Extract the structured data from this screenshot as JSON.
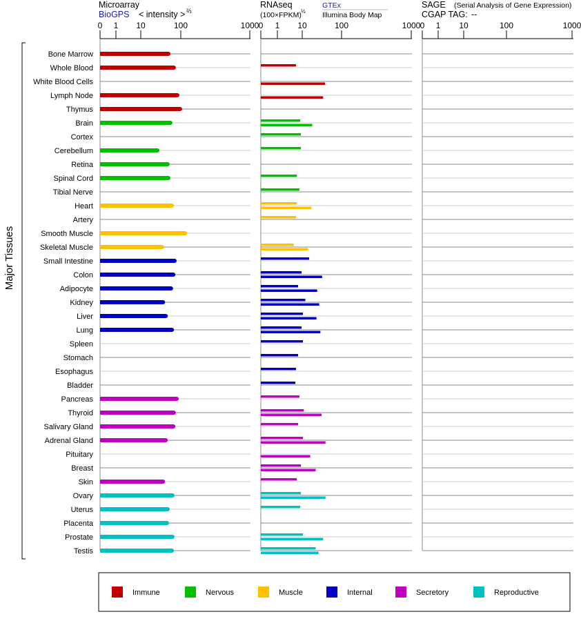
{
  "chart_data": {
    "type": "bar",
    "ylabel": "Major Tissues",
    "axis_ticks": [
      "0",
      "1",
      "10",
      "100",
      "1000"
    ],
    "xlim": [
      0,
      1000
    ],
    "panels": {
      "microarray": {
        "title": "Microarray",
        "source": "BioGPS",
        "unit": "< intensity >",
        "exponent": "⅔"
      },
      "rnaseq": {
        "title": "RNAseq",
        "unit": "(100×FPKM)",
        "exponent": "½",
        "series_top": "GTEx",
        "series_bottom": "Illumina Body Map"
      },
      "sage": {
        "title": "SAGE",
        "subtitle": "(Serial Analysis of Gene Expression)",
        "tag_label": "CGAP  TAG:",
        "tag_value": "--"
      }
    },
    "groups": [
      {
        "name": "Immune",
        "color": "#c00000"
      },
      {
        "name": "Nervous",
        "color": "#00c000"
      },
      {
        "name": "Muscle",
        "color": "#ffc000"
      },
      {
        "name": "Internal",
        "color": "#0000c0"
      },
      {
        "name": "Secretory",
        "color": "#c000c0"
      },
      {
        "name": "Reproductive",
        "color": "#00c0c0"
      }
    ],
    "rows": [
      {
        "tissue": "Bone Marrow",
        "group": 0,
        "microarray": 49,
        "gtex": null,
        "illumina": null
      },
      {
        "tissue": "Whole Blood",
        "group": 0,
        "microarray": 67,
        "gtex": 5.6,
        "illumina": null
      },
      {
        "tissue": "White Blood Cells",
        "group": 0,
        "microarray": null,
        "gtex": null,
        "illumina": 38
      },
      {
        "tissue": "Lymph Node",
        "group": 0,
        "microarray": 82,
        "gtex": null,
        "illumina": 34
      },
      {
        "tissue": "Thymus",
        "group": 0,
        "microarray": 96,
        "gtex": null,
        "illumina": null
      },
      {
        "tissue": "Brain",
        "group": 1,
        "microarray": 55,
        "gtex": 8.3,
        "illumina": 18
      },
      {
        "tissue": "Cortex",
        "group": 1,
        "microarray": null,
        "gtex": 8.8,
        "illumina": null
      },
      {
        "tissue": "Cerebellum",
        "group": 1,
        "microarray": 26,
        "gtex": 8.8,
        "illumina": null
      },
      {
        "tissue": "Retina",
        "group": 1,
        "microarray": 47,
        "gtex": null,
        "illumina": null
      },
      {
        "tissue": "Spinal Cord",
        "group": 1,
        "microarray": 49,
        "gtex": 6.0,
        "illumina": null
      },
      {
        "tissue": "Tibial Nerve",
        "group": 1,
        "microarray": null,
        "gtex": 7.7,
        "illumina": null
      },
      {
        "tissue": "Heart",
        "group": 2,
        "microarray": 60,
        "gtex": 6.0,
        "illumina": 17
      },
      {
        "tissue": "Artery",
        "group": 2,
        "microarray": null,
        "gtex": 5.6,
        "illumina": null
      },
      {
        "tissue": "Smooth Muscle",
        "group": 2,
        "microarray": 115,
        "gtex": null,
        "illumina": null
      },
      {
        "tissue": "Skeletal Muscle",
        "group": 2,
        "microarray": 34,
        "gtex": 4.6,
        "illumina": 14
      },
      {
        "tissue": "Small Intestine",
        "group": 3,
        "microarray": 70,
        "gtex": 15,
        "illumina": null
      },
      {
        "tissue": "Colon",
        "group": 3,
        "microarray": 65,
        "gtex": 9.4,
        "illumina": 32
      },
      {
        "tissue": "Adipocyte",
        "group": 3,
        "microarray": 57,
        "gtex": 6.8,
        "illumina": 24
      },
      {
        "tissue": "Kidney",
        "group": 3,
        "microarray": 36,
        "gtex": 12,
        "illumina": 27
      },
      {
        "tissue": "Liver",
        "group": 3,
        "microarray": 42,
        "gtex": 10.4,
        "illumina": 23
      },
      {
        "tissue": "Lung",
        "group": 3,
        "microarray": 60,
        "gtex": 9.4,
        "illumina": 29
      },
      {
        "tissue": "Spleen",
        "group": 3,
        "microarray": null,
        "gtex": 10.4,
        "illumina": null
      },
      {
        "tissue": "Stomach",
        "group": 3,
        "microarray": null,
        "gtex": 6.8,
        "illumina": null
      },
      {
        "tissue": "Esophagus",
        "group": 3,
        "microarray": null,
        "gtex": 5.6,
        "illumina": null
      },
      {
        "tissue": "Bladder",
        "group": 3,
        "microarray": null,
        "gtex": 5.3,
        "illumina": null
      },
      {
        "tissue": "Pancreas",
        "group": 4,
        "microarray": 79,
        "gtex": 7.7,
        "illumina": null
      },
      {
        "tissue": "Thyroid",
        "group": 4,
        "microarray": 67,
        "gtex": 11,
        "illumina": 31
      },
      {
        "tissue": "Salivary Gland",
        "group": 4,
        "microarray": 65,
        "gtex": 6.8,
        "illumina": null
      },
      {
        "tissue": "Adrenal Gland",
        "group": 4,
        "microarray": 42,
        "gtex": 10.4,
        "illumina": 39
      },
      {
        "tissue": "Pituitary",
        "group": 4,
        "microarray": null,
        "gtex": null,
        "illumina": 16
      },
      {
        "tissue": "Breast",
        "group": 4,
        "microarray": null,
        "gtex": 8.8,
        "illumina": 22
      },
      {
        "tissue": "Skin",
        "group": 4,
        "microarray": 36,
        "gtex": 6.0,
        "illumina": null
      },
      {
        "tissue": "Ovary",
        "group": 5,
        "microarray": 62,
        "gtex": 8.8,
        "illumina": 39
      },
      {
        "tissue": "Uterus",
        "group": 5,
        "microarray": 47,
        "gtex": 8.3,
        "illumina": null
      },
      {
        "tissue": "Placenta",
        "group": 5,
        "microarray": 45,
        "gtex": null,
        "illumina": null
      },
      {
        "tissue": "Prostate",
        "group": 5,
        "microarray": 62,
        "gtex": 10.4,
        "illumina": 34
      },
      {
        "tissue": "Testis",
        "group": 5,
        "microarray": 60,
        "gtex": 22,
        "illumina": 26
      }
    ]
  }
}
